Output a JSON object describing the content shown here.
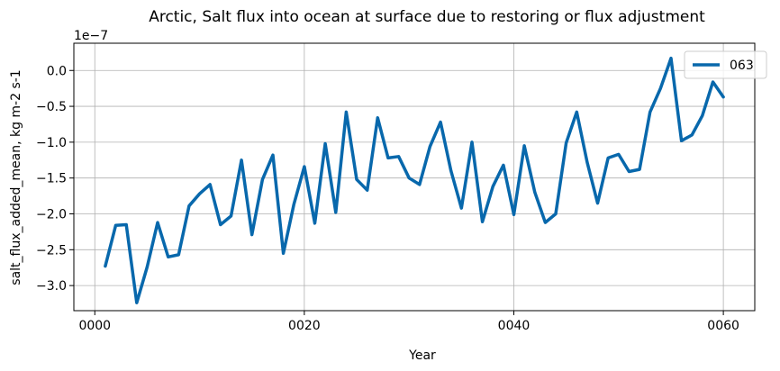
{
  "chart_data": {
    "type": "line",
    "title": "Arctic, Salt flux into ocean at surface due to restoring or flux adjustment",
    "xlabel": "Year",
    "ylabel": "salt_flux_added_mean, kg m-2 s-1",
    "offset_label": "1e−7",
    "xlim": [
      -2,
      63
    ],
    "ylim": [
      -3.35,
      0.38
    ],
    "x_ticks": [
      0,
      20,
      40,
      60
    ],
    "x_tick_labels": [
      "0000",
      "0020",
      "0040",
      "0060"
    ],
    "y_ticks": [
      -3.0,
      -2.5,
      -2.0,
      -1.5,
      -1.0,
      -0.5,
      0.0
    ],
    "y_tick_labels": [
      "−3.0",
      "−2.5",
      "−2.0",
      "−1.5",
      "−1.0",
      "−0.5",
      "0.0"
    ],
    "grid": true,
    "legend_position": "top-right",
    "color": "#0868ac",
    "series": [
      {
        "name": "063",
        "x": [
          1,
          2,
          3,
          4,
          5,
          6,
          7,
          8,
          9,
          10,
          11,
          12,
          13,
          14,
          15,
          16,
          17,
          18,
          19,
          20,
          21,
          22,
          23,
          24,
          25,
          26,
          27,
          28,
          29,
          30,
          31,
          32,
          33,
          34,
          35,
          36,
          37,
          38,
          39,
          40,
          41,
          42,
          43,
          44,
          45,
          46,
          47,
          48,
          49,
          50,
          51,
          52,
          53,
          54,
          55,
          56,
          57,
          58,
          59,
          60
        ],
        "values": [
          -2.73,
          -2.16,
          -2.15,
          -3.24,
          -2.74,
          -2.12,
          -2.6,
          -2.57,
          -1.89,
          -1.72,
          -1.59,
          -2.15,
          -2.03,
          -1.25,
          -2.29,
          -1.52,
          -1.18,
          -2.55,
          -1.87,
          -1.34,
          -2.13,
          -1.02,
          -1.98,
          -0.58,
          -1.52,
          -1.67,
          -0.66,
          -1.22,
          -1.2,
          -1.5,
          -1.59,
          -1.06,
          -0.72,
          -1.4,
          -1.92,
          -1.0,
          -2.11,
          -1.62,
          -1.32,
          -2.01,
          -1.05,
          -1.7,
          -2.12,
          -2.0,
          -1.01,
          -0.58,
          -1.28,
          -1.85,
          -1.22,
          -1.17,
          -1.41,
          -1.38,
          -0.58,
          -0.25,
          0.17,
          -0.98,
          -0.9,
          -0.63,
          -0.16,
          -0.37
        ]
      }
    ]
  }
}
